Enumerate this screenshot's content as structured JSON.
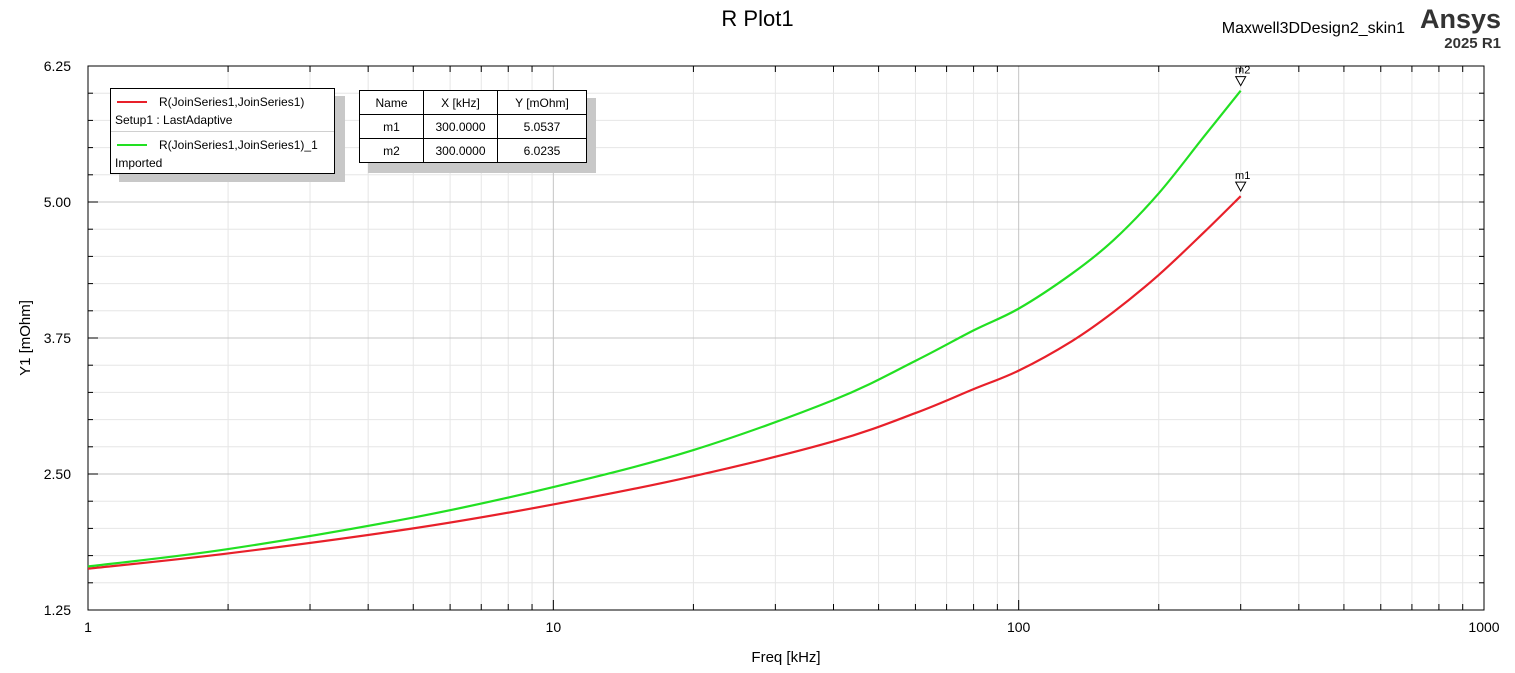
{
  "header": {
    "title": "R Plot1",
    "design_name": "Maxwell3DDesign2_skin1",
    "brand": "Ansys",
    "version": "2025 R1"
  },
  "legend": {
    "entries": [
      {
        "name": "R(JoinSeries1,JoinSeries1)",
        "source": "Setup1 : LastAdaptive",
        "color": "#e8202a"
      },
      {
        "name": "R(JoinSeries1,JoinSeries1)_1",
        "source": "Imported",
        "color": "#22e022"
      }
    ]
  },
  "marker_table": {
    "headers": [
      "Name",
      "X [kHz]",
      "Y [mOhm]"
    ],
    "rows": [
      [
        "m1",
        "300.0000",
        "5.0537"
      ],
      [
        "m2",
        "300.0000",
        "6.0235"
      ]
    ]
  },
  "chart_data": {
    "type": "line",
    "title": "R Plot1",
    "xlabel": "Freq [kHz]",
    "ylabel": "Y1 [mOhm]",
    "x_scale": "log",
    "xlim": [
      1,
      1000
    ],
    "ylim": [
      1.25,
      6.25
    ],
    "x_ticks": [
      1,
      10,
      100,
      1000
    ],
    "x_tick_labels": [
      "1",
      "10",
      "100",
      "1000"
    ],
    "y_ticks": [
      1.25,
      2.5,
      3.75,
      5.0,
      6.25
    ],
    "y_tick_labels": [
      "1.25",
      "2.50",
      "3.75",
      "5.00",
      "6.25"
    ],
    "grid": true,
    "legend_position": "top-left",
    "x": [
      1,
      2,
      5,
      10,
      20,
      40,
      60,
      80,
      100,
      130,
      160,
      200,
      250,
      300
    ],
    "series": [
      {
        "name": "R(JoinSeries1,JoinSeries1)",
        "color": "#e8202a",
        "values": [
          1.63,
          1.77,
          2.0,
          2.22,
          2.48,
          2.8,
          3.06,
          3.28,
          3.45,
          3.72,
          3.99,
          4.33,
          4.72,
          5.0537
        ]
      },
      {
        "name": "R(JoinSeries1,JoinSeries1)_1",
        "color": "#22e022",
        "values": [
          1.65,
          1.81,
          2.1,
          2.38,
          2.72,
          3.18,
          3.54,
          3.82,
          4.02,
          4.34,
          4.65,
          5.08,
          5.6,
          6.0235
        ]
      }
    ],
    "markers": [
      {
        "name": "m1",
        "x": 300,
        "y": 5.0537
      },
      {
        "name": "m2",
        "x": 300,
        "y": 6.0235
      }
    ]
  }
}
